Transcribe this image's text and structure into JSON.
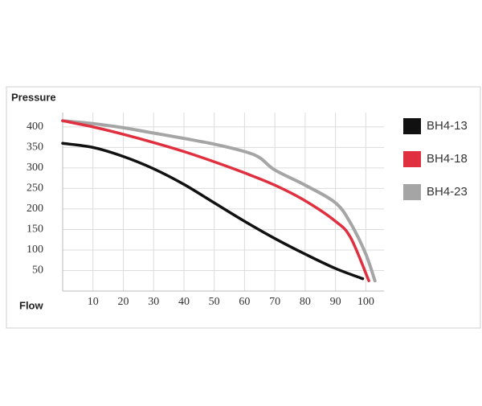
{
  "chart_data": {
    "type": "line",
    "y_label": "Pressure",
    "x_label": "Flow",
    "xlim": [
      0,
      106
    ],
    "ylim": [
      0,
      435
    ],
    "xticks": [
      10,
      20,
      30,
      40,
      50,
      60,
      70,
      80,
      90,
      100
    ],
    "yticks": [
      50,
      100,
      150,
      200,
      250,
      300,
      350,
      400
    ],
    "grid": true,
    "legend": "right",
    "series": [
      {
        "name": "BH4-13",
        "color": "#111111",
        "x": [
          0,
          10,
          20,
          30,
          40,
          50,
          60,
          70,
          80,
          90,
          99
        ],
        "values": [
          360,
          350,
          328,
          298,
          260,
          215,
          170,
          128,
          90,
          55,
          30
        ]
      },
      {
        "name": "BH4-18",
        "color": "#e0303f",
        "x": [
          0,
          10,
          20,
          30,
          40,
          50,
          60,
          70,
          80,
          90,
          95,
          101
        ],
        "values": [
          415,
          400,
          382,
          362,
          340,
          315,
          288,
          258,
          220,
          170,
          130,
          25
        ]
      },
      {
        "name": "BH4-23",
        "color": "#a5a5a5",
        "x": [
          0,
          10,
          20,
          30,
          40,
          50,
          60,
          65,
          70,
          80,
          90,
          95,
          100,
          103
        ],
        "values": [
          415,
          408,
          398,
          385,
          372,
          358,
          340,
          325,
          295,
          258,
          215,
          165,
          90,
          25
        ]
      }
    ]
  }
}
